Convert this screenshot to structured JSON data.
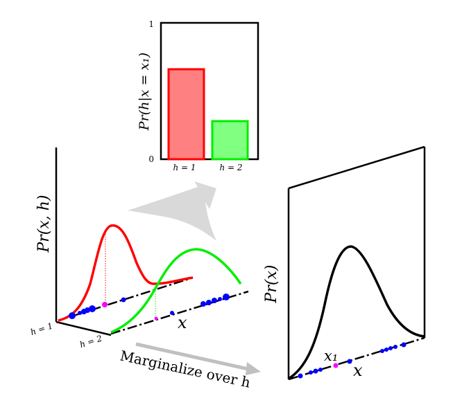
{
  "bar_chart": {
    "ylabel": "Pr(h|x = x₁)",
    "y_tick_top": "1",
    "y_tick_bottom": "0",
    "ylim": [
      0,
      1
    ],
    "bars": [
      {
        "label": "h = 1",
        "value": 0.66,
        "fill": "#ff8080",
        "stroke": "#ff0000"
      },
      {
        "label": "h = 2",
        "value": 0.28,
        "fill": "#80ff80",
        "stroke": "#00ee00"
      }
    ]
  },
  "joint_plot": {
    "ylabel": "Pr(x, h)",
    "xlabel": "x",
    "axis_label_h1": "h = 1",
    "axis_label_h2": "h = 2",
    "curve_h1_color": "#ff0000",
    "curve_h2_color": "#00ee00",
    "sample_color": "#0000ff",
    "query_color": "#ff00ff"
  },
  "marginal_plot": {
    "ylabel": "Pr(x)",
    "xlabel": "x",
    "query_label": "x₁",
    "curve_color": "#000000"
  },
  "arrow_label": "Marginalize over h"
}
